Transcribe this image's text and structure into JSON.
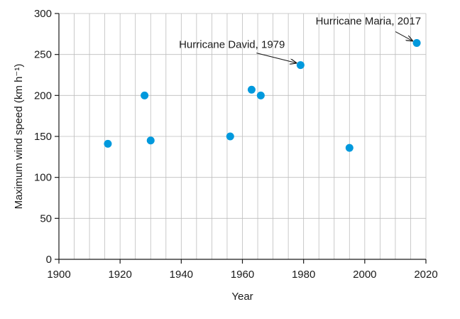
{
  "chart_data": {
    "type": "scatter",
    "title": "",
    "xlabel": "Year",
    "ylabel": "Maximum wind speed (km h⁻¹)",
    "xlim": [
      1900,
      2020
    ],
    "ylim": [
      0,
      300
    ],
    "x_ticks": [
      "1900",
      "1920",
      "1940",
      "1960",
      "1980",
      "2000",
      "2020"
    ],
    "y_ticks": [
      "0",
      "50",
      "100",
      "150",
      "200",
      "250",
      "300"
    ],
    "x_grid_step": 5,
    "y_grid_step": 50,
    "grid": true,
    "marker_color": "#0099dd",
    "points": [
      {
        "x": 1916,
        "y": 141
      },
      {
        "x": 1928,
        "y": 200
      },
      {
        "x": 1930,
        "y": 145
      },
      {
        "x": 1956,
        "y": 150
      },
      {
        "x": 1963,
        "y": 207
      },
      {
        "x": 1966,
        "y": 200
      },
      {
        "x": 1979,
        "y": 237
      },
      {
        "x": 1995,
        "y": 136
      },
      {
        "x": 2017,
        "y": 264
      }
    ],
    "annotations": [
      {
        "text": "Hurricane David, 1979",
        "x": 1979,
        "y": 237
      },
      {
        "text": "Hurricane Maria, 2017",
        "x": 2017,
        "y": 264
      }
    ]
  }
}
